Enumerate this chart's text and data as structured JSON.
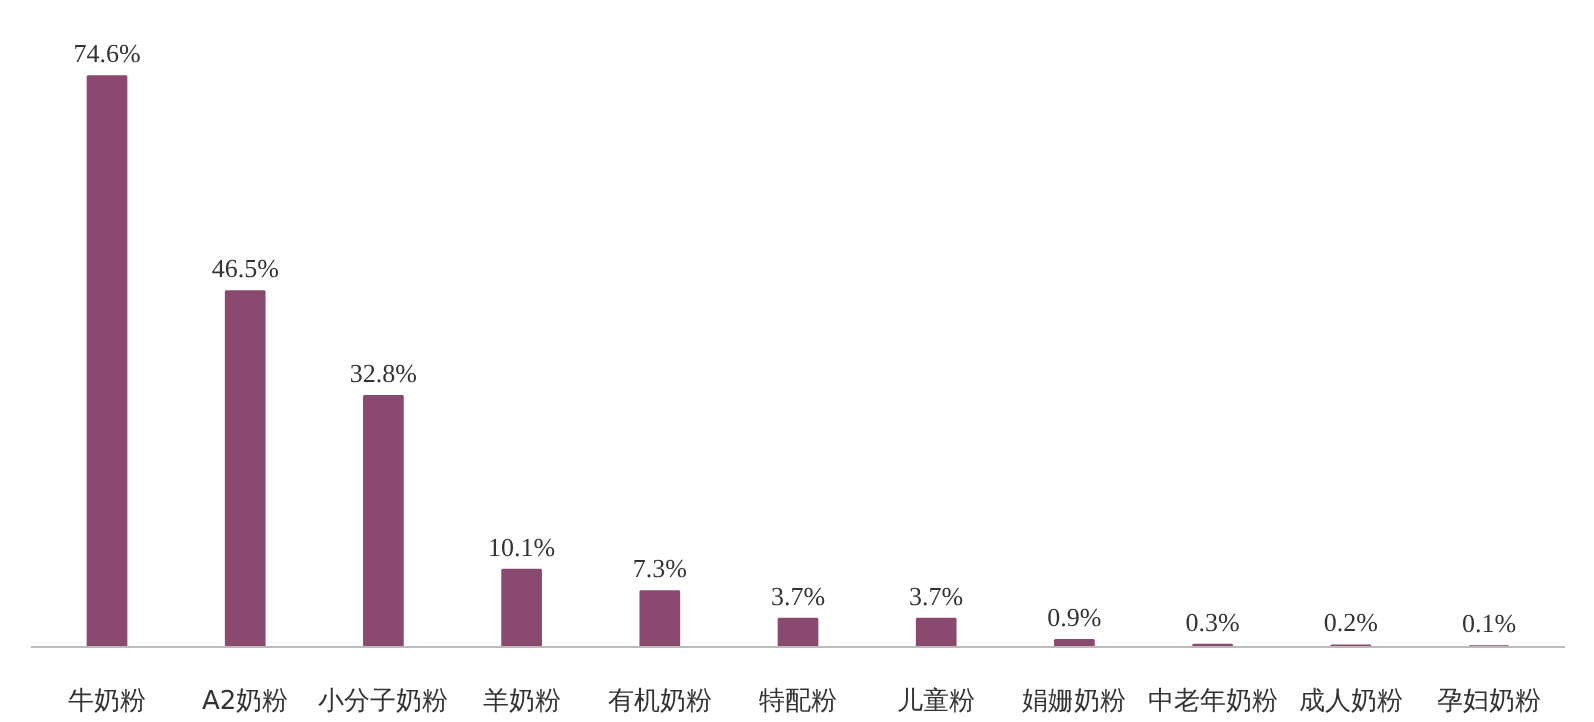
{
  "chart_data": {
    "type": "bar",
    "categories": [
      "牛奶粉",
      "A2奶粉",
      "小分子奶粉",
      "羊奶粉",
      "有机奶粉",
      "特配粉",
      "儿童粉",
      "娟姗奶粉",
      "中老年奶粉",
      "成人奶粉",
      "孕妇奶粉"
    ],
    "values": [
      74.6,
      46.5,
      32.8,
      10.1,
      7.3,
      3.7,
      3.7,
      0.9,
      0.3,
      0.2,
      0.1
    ],
    "value_labels": [
      "74.6%",
      "46.5%",
      "32.8%",
      "10.1%",
      "7.3%",
      "3.7%",
      "3.7%",
      "0.9%",
      "0.3%",
      "0.2%",
      "0.1%"
    ],
    "color": "#8a4a70"
  }
}
